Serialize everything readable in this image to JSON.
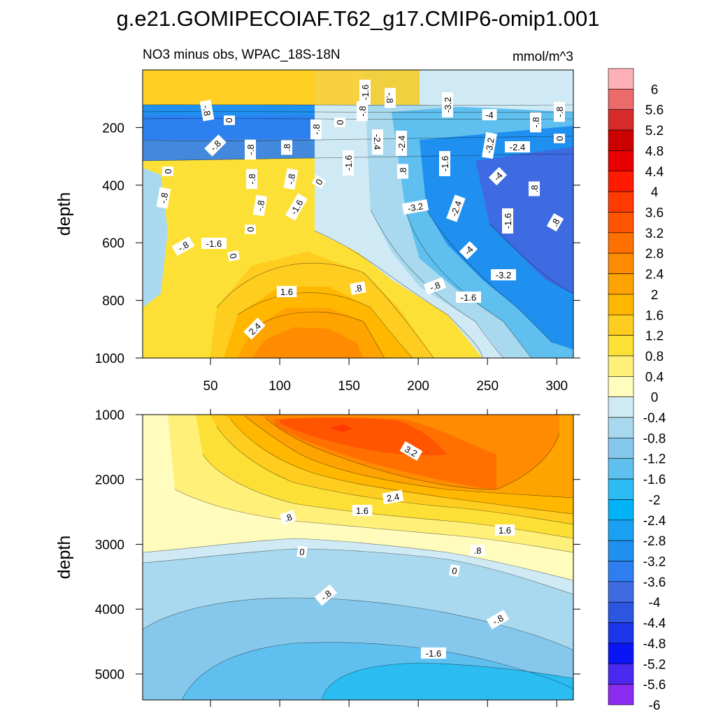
{
  "chart_data": {
    "type": "heatmap",
    "title": "g.e21.GOMIPECOIAF.T62_g17.CMIP6-omip1.001",
    "subtitle_left": "NO3 minus obs, WPAC_18S-18N",
    "subtitle_right": "mmol/m^3",
    "colorbar": {
      "levels": [
        "6",
        "5.6",
        "5.2",
        "4.8",
        "4.4",
        "4",
        "3.6",
        "3.2",
        "2.8",
        "2.4",
        "2",
        "1.6",
        "1.2",
        "0.8",
        "0.4",
        "0",
        "-0.4",
        "-0.8",
        "-1.2",
        "-1.6",
        "-2",
        "-2.4",
        "-2.8",
        "-3.2",
        "-3.6",
        "-4",
        "-4.4",
        "-4.8",
        "-5.2",
        "-5.6",
        "-6"
      ],
      "colors": [
        "#fdb1b6",
        "#eb6a6a",
        "#d72a2a",
        "#cd0000",
        "#e80000",
        "#ff1a00",
        "#fe3a00",
        "#ff5500",
        "#ff7000",
        "#ff8c00",
        "#ffa300",
        "#ffb700",
        "#ffcc20",
        "#fde035",
        "#fff07a",
        "#fffcbd",
        "#cfeaf5",
        "#a9d9ee",
        "#86c8ec",
        "#5fc0f0",
        "#2bbcf2",
        "#00b3f7",
        "#1ba1f3",
        "#1f90ef",
        "#2e7ef0",
        "#3f6be2",
        "#2c55e0",
        "#1a36e8",
        "#0a14f5",
        "#4a28f0",
        "#8a2cf0"
      ]
    },
    "top_panel": {
      "ylabel": "depth",
      "xlim": [
        1,
        312
      ],
      "ylim": [
        0,
        1000
      ],
      "xticks": [
        "50",
        "100",
        "150",
        "200",
        "250",
        "300"
      ],
      "yticks": [
        "200",
        "400",
        "600",
        "800",
        "1000"
      ],
      "contour_labels": [
        "-.8",
        "0",
        "-.8",
        "-.8",
        "-.8",
        "0",
        "-.8",
        "-.8",
        ".8",
        "-.8",
        "-.8",
        "-1.6",
        "-1.6",
        "0",
        "0",
        "0",
        "-.8",
        "0",
        "-.8",
        "-1.6",
        "-.8",
        "-1.6",
        "-2.4",
        "-2.4",
        ".8",
        "-1.6",
        "-3.2",
        "-3.2",
        "-4",
        "-3.2",
        "-2.4",
        "-2.4",
        "-4",
        "-4",
        "-1.6",
        "-.8",
        "-.8",
        "0",
        ".8",
        ".8",
        "-3.2",
        "-.8",
        "-1.6",
        ".8",
        "1.6",
        "2.4"
      ]
    },
    "bottom_panel": {
      "ylabel": "depth",
      "xlim": [
        1,
        312
      ],
      "ylim": [
        1000,
        5400
      ],
      "yticks": [
        "1000",
        "2000",
        "3000",
        "4000",
        "5000"
      ],
      "contour_labels": [
        "3.2",
        "2.4",
        "1.6",
        ".8",
        "1.6",
        ".8",
        "0",
        "0",
        "-.8",
        "-.8",
        "-1.6"
      ]
    }
  }
}
